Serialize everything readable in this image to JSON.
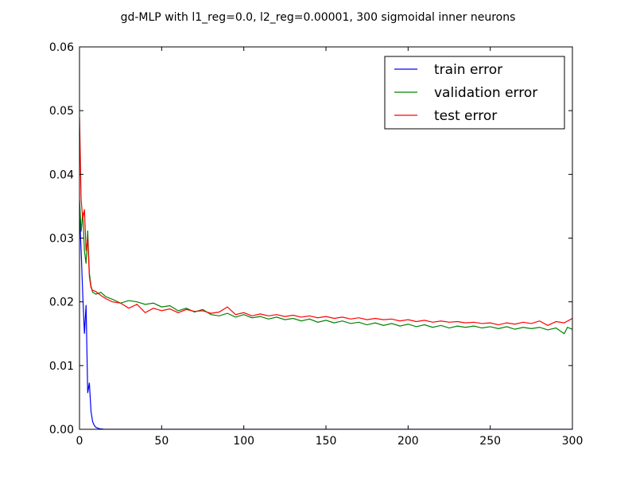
{
  "chart_data": {
    "type": "line",
    "title": "gd-MLP with l1_reg=0.0, l2_reg=0.00001, 300 sigmoidal inner neurons",
    "xlabel": "",
    "ylabel": "",
    "xlim": [
      0,
      300
    ],
    "ylim": [
      0,
      0.06
    ],
    "x_ticks": [
      "0",
      "50",
      "100",
      "150",
      "200",
      "250",
      "300"
    ],
    "y_ticks": [
      "0.00",
      "0.01",
      "0.02",
      "0.03",
      "0.04",
      "0.05",
      "0.06"
    ],
    "grid": false,
    "legend_position": "top-right",
    "series": [
      {
        "name": "train error",
        "color": "#0000ff",
        "points": [
          [
            0,
            0.034
          ],
          [
            1,
            0.028
          ],
          [
            2,
            0.021
          ],
          [
            3,
            0.015
          ],
          [
            4,
            0.0195
          ],
          [
            5,
            0.0057
          ],
          [
            6,
            0.0073
          ],
          [
            7,
            0.0028
          ],
          [
            8,
            0.0012
          ],
          [
            9,
            0.0006
          ],
          [
            10,
            0.0003
          ],
          [
            12,
            0.0001
          ],
          [
            15,
            0
          ],
          [
            300,
            0
          ]
        ]
      },
      {
        "name": "validation error",
        "color": "#008000",
        "points": [
          [
            0,
            0.036
          ],
          [
            1,
            0.031
          ],
          [
            2,
            0.034
          ],
          [
            3,
            0.028
          ],
          [
            4,
            0.026
          ],
          [
            5,
            0.0312
          ],
          [
            6,
            0.0245
          ],
          [
            7,
            0.0225
          ],
          [
            8,
            0.0215
          ],
          [
            10,
            0.0212
          ],
          [
            13,
            0.0215
          ],
          [
            16,
            0.0208
          ],
          [
            20,
            0.0204
          ],
          [
            25,
            0.0198
          ],
          [
            30,
            0.0202
          ],
          [
            35,
            0.02
          ],
          [
            40,
            0.0196
          ],
          [
            45,
            0.0198
          ],
          [
            50,
            0.0192
          ],
          [
            55,
            0.0194
          ],
          [
            60,
            0.0186
          ],
          [
            65,
            0.019
          ],
          [
            70,
            0.0184
          ],
          [
            75,
            0.0188
          ],
          [
            80,
            0.018
          ],
          [
            85,
            0.0178
          ],
          [
            90,
            0.0182
          ],
          [
            95,
            0.0176
          ],
          [
            100,
            0.018
          ],
          [
            105,
            0.0175
          ],
          [
            110,
            0.0177
          ],
          [
            115,
            0.0173
          ],
          [
            120,
            0.0176
          ],
          [
            125,
            0.0172
          ],
          [
            130,
            0.0174
          ],
          [
            135,
            0.017
          ],
          [
            140,
            0.0173
          ],
          [
            145,
            0.0168
          ],
          [
            150,
            0.0171
          ],
          [
            155,
            0.0167
          ],
          [
            160,
            0.017
          ],
          [
            165,
            0.0166
          ],
          [
            170,
            0.0168
          ],
          [
            175,
            0.0164
          ],
          [
            180,
            0.0167
          ],
          [
            185,
            0.0163
          ],
          [
            190,
            0.0166
          ],
          [
            195,
            0.0162
          ],
          [
            200,
            0.0165
          ],
          [
            205,
            0.0161
          ],
          [
            210,
            0.0164
          ],
          [
            215,
            0.016
          ],
          [
            220,
            0.0163
          ],
          [
            225,
            0.0159
          ],
          [
            230,
            0.0162
          ],
          [
            235,
            0.016
          ],
          [
            240,
            0.0162
          ],
          [
            245,
            0.0159
          ],
          [
            250,
            0.0161
          ],
          [
            255,
            0.0158
          ],
          [
            260,
            0.0161
          ],
          [
            265,
            0.0157
          ],
          [
            270,
            0.016
          ],
          [
            275,
            0.0158
          ],
          [
            280,
            0.016
          ],
          [
            285,
            0.0156
          ],
          [
            290,
            0.0159
          ],
          [
            295,
            0.015
          ],
          [
            297,
            0.016
          ],
          [
            300,
            0.0157
          ]
        ]
      },
      {
        "name": "test error",
        "color": "#ff0000",
        "points": [
          [
            0,
            0.049
          ],
          [
            1,
            0.036
          ],
          [
            2,
            0.033
          ],
          [
            3,
            0.0345
          ],
          [
            4,
            0.028
          ],
          [
            5,
            0.03
          ],
          [
            6,
            0.024
          ],
          [
            7,
            0.0222
          ],
          [
            8,
            0.0218
          ],
          [
            10,
            0.0216
          ],
          [
            13,
            0.021
          ],
          [
            16,
            0.0205
          ],
          [
            20,
            0.02
          ],
          [
            25,
            0.0198
          ],
          [
            30,
            0.019
          ],
          [
            35,
            0.0196
          ],
          [
            40,
            0.0183
          ],
          [
            45,
            0.019
          ],
          [
            50,
            0.0186
          ],
          [
            55,
            0.0189
          ],
          [
            60,
            0.0183
          ],
          [
            65,
            0.0188
          ],
          [
            70,
            0.0185
          ],
          [
            75,
            0.0186
          ],
          [
            80,
            0.0182
          ],
          [
            85,
            0.0184
          ],
          [
            90,
            0.0192
          ],
          [
            95,
            0.018
          ],
          [
            100,
            0.0183
          ],
          [
            105,
            0.0178
          ],
          [
            110,
            0.0181
          ],
          [
            115,
            0.0178
          ],
          [
            120,
            0.018
          ],
          [
            125,
            0.0177
          ],
          [
            130,
            0.0179
          ],
          [
            135,
            0.0176
          ],
          [
            140,
            0.0178
          ],
          [
            145,
            0.0175
          ],
          [
            150,
            0.0177
          ],
          [
            155,
            0.0174
          ],
          [
            160,
            0.0176
          ],
          [
            165,
            0.0173
          ],
          [
            170,
            0.0175
          ],
          [
            175,
            0.0172
          ],
          [
            180,
            0.0174
          ],
          [
            185,
            0.0172
          ],
          [
            190,
            0.0173
          ],
          [
            195,
            0.017
          ],
          [
            200,
            0.0172
          ],
          [
            205,
            0.0169
          ],
          [
            210,
            0.0171
          ],
          [
            215,
            0.0168
          ],
          [
            220,
            0.017
          ],
          [
            225,
            0.0168
          ],
          [
            230,
            0.0169
          ],
          [
            235,
            0.0167
          ],
          [
            240,
            0.0168
          ],
          [
            245,
            0.0166
          ],
          [
            250,
            0.0167
          ],
          [
            255,
            0.0164
          ],
          [
            260,
            0.0167
          ],
          [
            265,
            0.0165
          ],
          [
            270,
            0.0168
          ],
          [
            275,
            0.0166
          ],
          [
            280,
            0.017
          ],
          [
            285,
            0.0163
          ],
          [
            290,
            0.0169
          ],
          [
            295,
            0.0167
          ],
          [
            300,
            0.0174
          ]
        ]
      }
    ]
  }
}
